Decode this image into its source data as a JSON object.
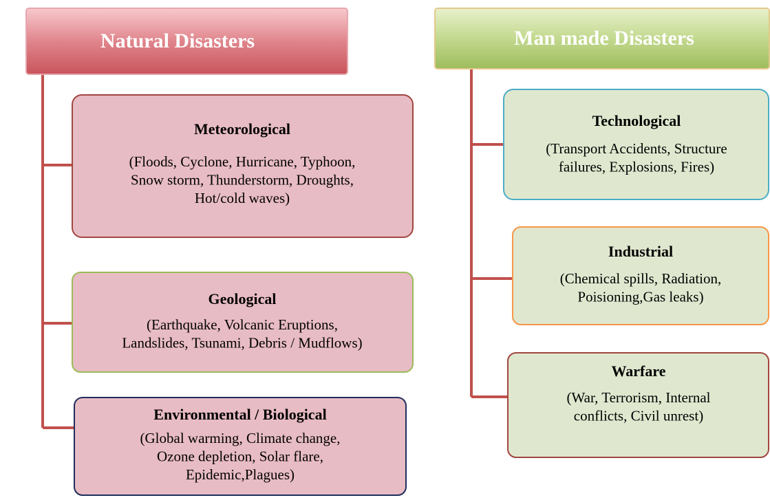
{
  "columns": [
    {
      "title": "Natural Disasters",
      "items": [
        {
          "title": "Meteorological",
          "lines": [
            "(Floods, Cyclone, Hurricane, Typhoon,",
            "Snow storm, Thunderstorm, Droughts,",
            "Hot/cold waves)"
          ]
        },
        {
          "title": "Geological",
          "lines": [
            "(Earthquake, Volcanic Eruptions,",
            "Landslides, Tsunami, Debris / Mudflows)"
          ]
        },
        {
          "title": "Environmental / Biological",
          "lines": [
            "(Global warming, Climate change,",
            "Ozone depletion, Solar flare,",
            "Epidemic,Plagues)"
          ]
        }
      ]
    },
    {
      "title": "Man made Disasters",
      "items": [
        {
          "title": "Technological",
          "lines": [
            "(Transport Accidents, Structure",
            "failures, Explosions, Fires)"
          ]
        },
        {
          "title": "Industrial",
          "lines": [
            "(Chemical spills, Radiation,",
            "Poisioning,Gas leaks)"
          ]
        },
        {
          "title": "Warfare",
          "lines": [
            "(War, Terrorism, Internal",
            "conflicts, Civil unrest)"
          ]
        }
      ]
    }
  ]
}
